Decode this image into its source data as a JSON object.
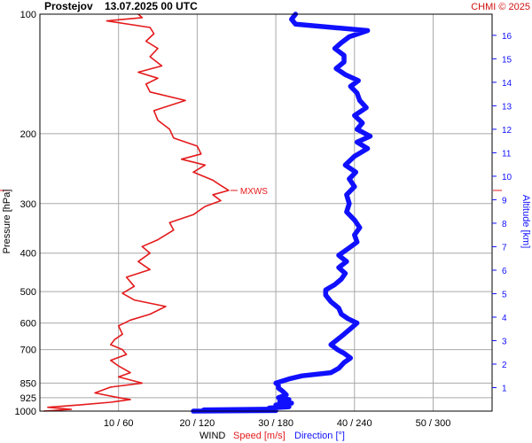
{
  "header": {
    "station": "Prostejov",
    "datetime": "13.07.2025 00 UTC",
    "credit": "CHMI © 2025"
  },
  "colors": {
    "speed": "#e41a1c",
    "direction": "#1010ff",
    "grid": "#a9a9a9",
    "frame": "#000000",
    "credit": "#d01010"
  },
  "chart_data": {
    "type": "line",
    "y_axis_left": {
      "label": "Pressure [hPa]",
      "scale": "log",
      "range": [
        1000,
        100
      ],
      "ticks": [
        100,
        200,
        300,
        400,
        500,
        600,
        700,
        850,
        925,
        1000
      ]
    },
    "y_axis_right": {
      "label": "Altitude [km]",
      "ticks": [
        1,
        2,
        3,
        4,
        5,
        6,
        7,
        8,
        9,
        10,
        11,
        12,
        13,
        14,
        15,
        16
      ]
    },
    "x_axis": {
      "title": "WIND",
      "speed_label": "Speed [m/s]",
      "direction_label": "Direction [°]",
      "tick_labels": [
        "10 / 60",
        "20 / 120",
        "30 / 180",
        "40 / 240",
        "50 / 300"
      ],
      "speed_range": [
        0,
        57.5
      ],
      "direction_range": [
        0,
        345
      ]
    },
    "grid": true,
    "annotations": [
      {
        "text": "MXWS",
        "pressure": 278,
        "speed": 24
      }
    ],
    "series": [
      {
        "name": "Speed [m/s]",
        "points": [
          [
            1000,
            0.5
          ],
          [
            990,
            4.0
          ],
          [
            978,
            1.0
          ],
          [
            965,
            5.0
          ],
          [
            950,
            9.0
          ],
          [
            935,
            11.5
          ],
          [
            925,
            10.0
          ],
          [
            900,
            7.0
          ],
          [
            870,
            9.0
          ],
          [
            850,
            13.0
          ],
          [
            820,
            10.0
          ],
          [
            800,
            11.5
          ],
          [
            770,
            10.0
          ],
          [
            745,
            9.0
          ],
          [
            720,
            11.0
          ],
          [
            700,
            10.5
          ],
          [
            680,
            9.0
          ],
          [
            660,
            9.5
          ],
          [
            640,
            10.5
          ],
          [
            610,
            10.0
          ],
          [
            590,
            11.5
          ],
          [
            570,
            14.0
          ],
          [
            545,
            16.0
          ],
          [
            525,
            12.0
          ],
          [
            505,
            10.5
          ],
          [
            485,
            12.0
          ],
          [
            460,
            11.0
          ],
          [
            440,
            14.0
          ],
          [
            420,
            12.5
          ],
          [
            400,
            14.0
          ],
          [
            385,
            13.0
          ],
          [
            370,
            15.0
          ],
          [
            350,
            17.0
          ],
          [
            335,
            16.5
          ],
          [
            320,
            19.5
          ],
          [
            305,
            21.0
          ],
          [
            295,
            23.0
          ],
          [
            285,
            22.0
          ],
          [
            278,
            24.0
          ],
          [
            270,
            23.0
          ],
          [
            262,
            22.0
          ],
          [
            250,
            19.5
          ],
          [
            240,
            21.0
          ],
          [
            232,
            18.0
          ],
          [
            225,
            20.5
          ],
          [
            215,
            20.0
          ],
          [
            205,
            17.0
          ],
          [
            195,
            16.5
          ],
          [
            185,
            15.0
          ],
          [
            175,
            14.5
          ],
          [
            165,
            18.5
          ],
          [
            157,
            14.0
          ],
          [
            150,
            13.5
          ],
          [
            145,
            15.0
          ],
          [
            140,
            12.5
          ],
          [
            135,
            15.5
          ],
          [
            128,
            14.0
          ],
          [
            122,
            15.0
          ],
          [
            117,
            13.5
          ],
          [
            112,
            14.5
          ],
          [
            108,
            14.0
          ],
          [
            104,
            8.5
          ],
          [
            102,
            13.0
          ],
          [
            100,
            12.5
          ]
        ]
      },
      {
        "name": "Direction [°]",
        "points": [
          [
            1000,
            117
          ],
          [
            997,
            180
          ],
          [
            993,
            125
          ],
          [
            988,
            180
          ],
          [
            982,
            175
          ],
          [
            975,
            190
          ],
          [
            965,
            180
          ],
          [
            955,
            192
          ],
          [
            945,
            183
          ],
          [
            935,
            190
          ],
          [
            925,
            182
          ],
          [
            910,
            188
          ],
          [
            890,
            185
          ],
          [
            875,
            182
          ],
          [
            860,
            182
          ],
          [
            850,
            180
          ],
          [
            830,
            190
          ],
          [
            815,
            200
          ],
          [
            800,
            222
          ],
          [
            780,
            228
          ],
          [
            755,
            232
          ],
          [
            735,
            237
          ],
          [
            715,
            232
          ],
          [
            700,
            227
          ],
          [
            680,
            222
          ],
          [
            660,
            227
          ],
          [
            640,
            232
          ],
          [
            620,
            237
          ],
          [
            600,
            242
          ],
          [
            585,
            235
          ],
          [
            570,
            230
          ],
          [
            550,
            228
          ],
          [
            530,
            222
          ],
          [
            510,
            218
          ],
          [
            495,
            218
          ],
          [
            480,
            225
          ],
          [
            465,
            230
          ],
          [
            450,
            233
          ],
          [
            435,
            228
          ],
          [
            420,
            234
          ],
          [
            405,
            228
          ],
          [
            390,
            235
          ],
          [
            375,
            242
          ],
          [
            360,
            240
          ],
          [
            345,
            244
          ],
          [
            330,
            240
          ],
          [
            315,
            234
          ],
          [
            300,
            236
          ],
          [
            285,
            234
          ],
          [
            272,
            240
          ],
          [
            260,
            236
          ],
          [
            250,
            241
          ],
          [
            240,
            233
          ],
          [
            228,
            240
          ],
          [
            218,
            250
          ],
          [
            210,
            242
          ],
          [
            203,
            252
          ],
          [
            195,
            242
          ],
          [
            188,
            246
          ],
          [
            180,
            240
          ],
          [
            172,
            249
          ],
          [
            165,
            244
          ],
          [
            158,
            242
          ],
          [
            152,
            237
          ],
          [
            147,
            243
          ],
          [
            142,
            233
          ],
          [
            137,
            226
          ],
          [
            132,
            232
          ],
          [
            127,
            232
          ],
          [
            122,
            225
          ],
          [
            118,
            230
          ],
          [
            114,
            236
          ],
          [
            110,
            250
          ],
          [
            106,
            195
          ],
          [
            103,
            192
          ],
          [
            100,
            195
          ]
        ]
      }
    ]
  }
}
